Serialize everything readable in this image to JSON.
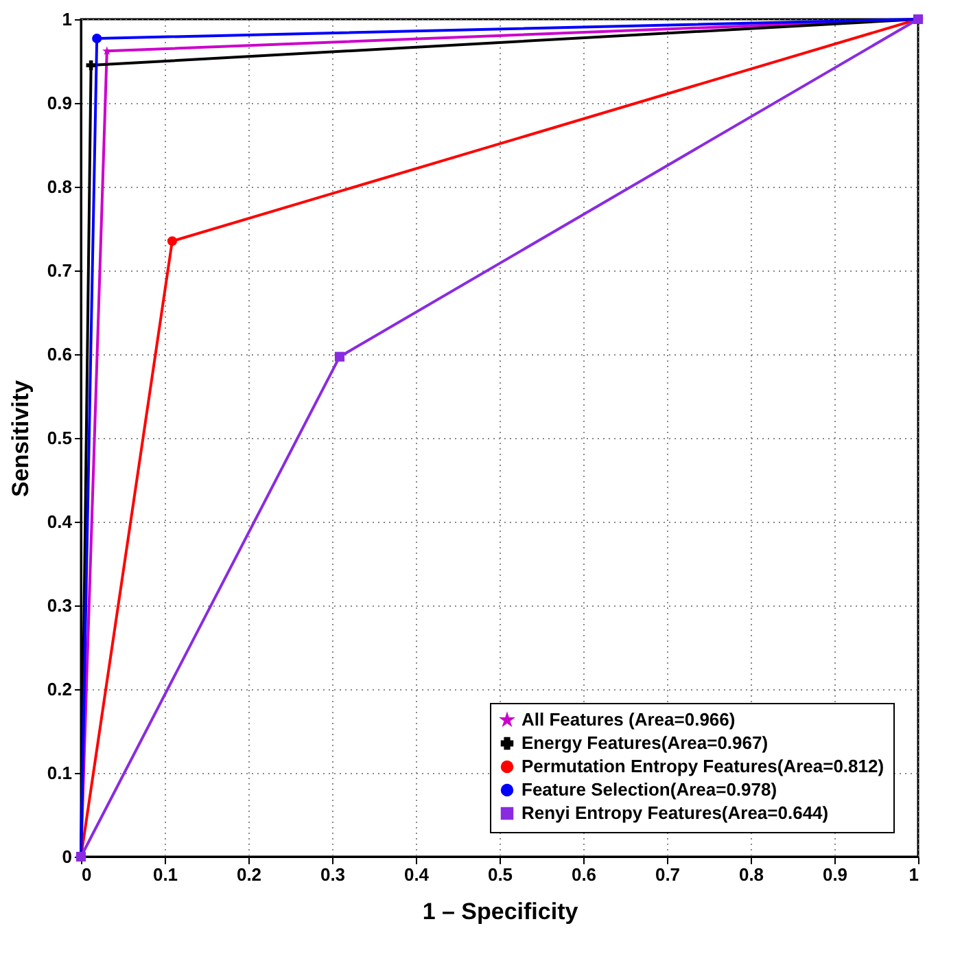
{
  "chart_data": {
    "type": "line",
    "xlabel": "1 – Specificity",
    "ylabel": "Sensitivity",
    "xlim": [
      0,
      1
    ],
    "ylim": [
      0,
      1
    ],
    "xticks": [
      0,
      0.1,
      0.2,
      0.3,
      0.4,
      0.5,
      0.6,
      0.7,
      0.8,
      0.9,
      1
    ],
    "yticks": [
      0,
      0.1,
      0.2,
      0.3,
      0.4,
      0.5,
      0.6,
      0.7,
      0.8,
      0.9,
      1
    ],
    "grid": true,
    "legend": "bottom right",
    "line_style": "solid",
    "series": [
      {
        "name": "All Features (Area=0.966)",
        "color": "#cc00cc",
        "marker": "star",
        "x": [
          0,
          0.031,
          1
        ],
        "values": [
          0,
          0.962,
          1
        ]
      },
      {
        "name": "Energy Features(Area=0.967)",
        "color": "#000000",
        "marker": "cross",
        "x": [
          0,
          0.012,
          1
        ],
        "values": [
          0,
          0.945,
          1
        ]
      },
      {
        "name": "Permutation Entropy Features(Area=0.812)",
        "color": "#ff0000",
        "marker": "circle",
        "x": [
          0,
          0.109,
          1
        ],
        "values": [
          0,
          0.735,
          1
        ]
      },
      {
        "name": "Feature Selection(Area=0.978)",
        "color": "#0000ff",
        "marker": "circle",
        "x": [
          0,
          0.019,
          1
        ],
        "values": [
          0,
          0.977,
          1
        ]
      },
      {
        "name": "Renyi Entropy Features(Area=0.644)",
        "color": "#8a2be2",
        "marker": "square",
        "x": [
          0,
          0.309,
          1
        ],
        "values": [
          0,
          0.597,
          1
        ]
      }
    ]
  }
}
